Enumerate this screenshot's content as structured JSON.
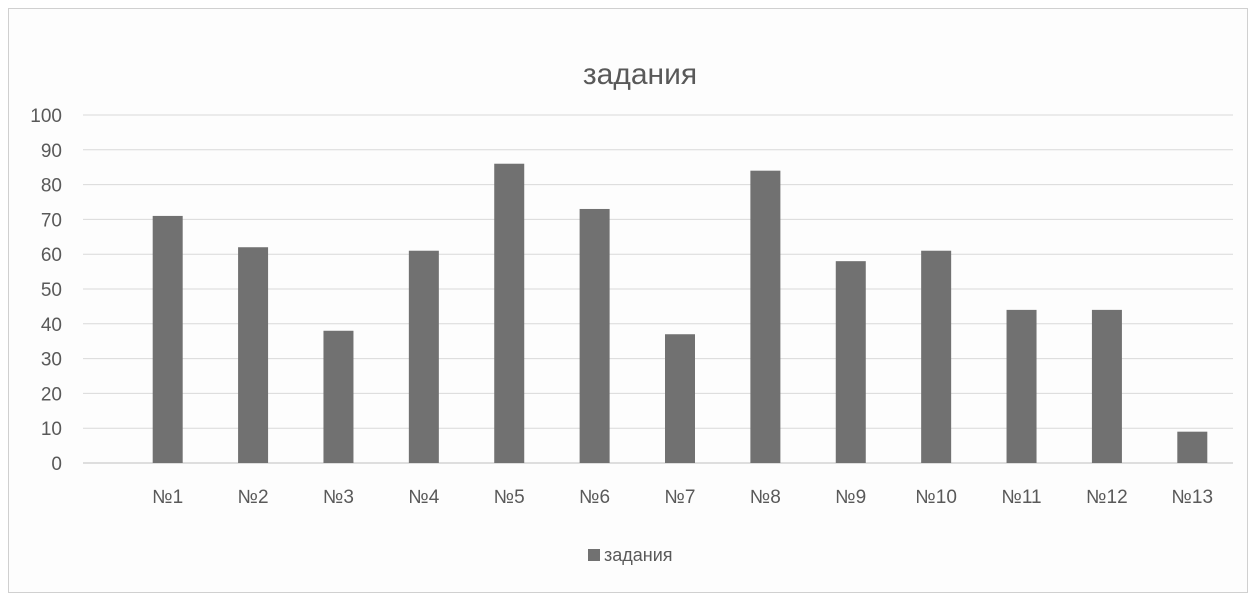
{
  "chart_data": {
    "type": "bar",
    "title": "задания",
    "categories": [
      "№1",
      "№2",
      "№3",
      "№4",
      "№5",
      "№6",
      "№7",
      "№8",
      "№9",
      "№10",
      "№11",
      "№12",
      "№13"
    ],
    "series": [
      {
        "name": "задания",
        "values": [
          71,
          62,
          38,
          61,
          86,
          73,
          37,
          84,
          58,
          61,
          44,
          44,
          9
        ],
        "color": "#717171"
      }
    ],
    "ylim": [
      0,
      100
    ],
    "yticks": [
      "0",
      "10",
      "20",
      "30",
      "40",
      "50",
      "60",
      "70",
      "80",
      "90",
      "100"
    ],
    "grid": true,
    "legend_position": "bottom"
  }
}
